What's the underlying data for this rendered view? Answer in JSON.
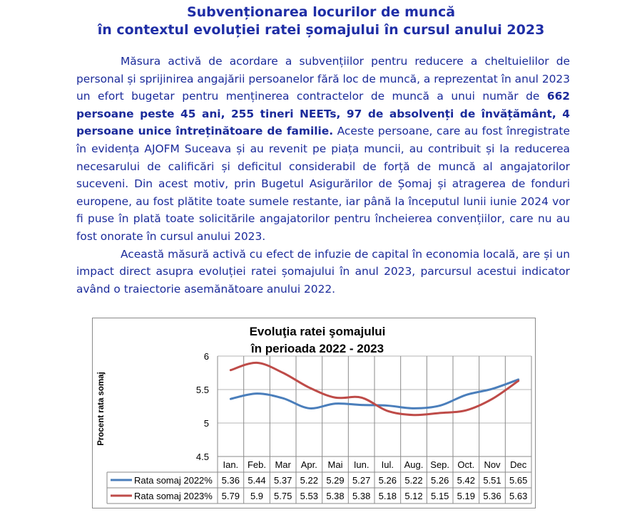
{
  "heading": {
    "line1": "Subvenționarea locurilor de muncă",
    "line2": "în contextul evoluției ratei șomajului în cursul anului 2023"
  },
  "paragraph1": {
    "part1": "Măsura activă de acordare a subvențiilor pentru reducere a cheltuielilor de personal și sprijinirea angajării persoanelor fără loc de muncă, a reprezentat în anul 2023 un efort bugetar pentru menținerea contractelor de muncă a unui număr de ",
    "bold": "662 persoane peste 45 ani, 255 tineri NEETs, 97 de absolvenți de învățământ, 4 persoane unice întreținătoare de familie.",
    "part2": " Aceste persoane, care au fost înregistrate în evidența AJOFM Suceava și au revenit pe piața muncii, au contribuit și la reducerea necesarului de calificări și deficitul considerabil de forță de muncă al angajatorilor suceveni. Din acest motiv, prin Bugetul Asigurărilor de Șomaj și atragerea de fonduri europene, au fost plătite toate sumele restante, iar până la începutul lunii iunie 2024 vor fi puse în plată toate solicitările angajatorilor pentru încheierea convențiilor, care nu au fost onorate în cursul anului 2023."
  },
  "paragraph2": "Această măsură activă cu efect de infuzie de capital în economia locală, are și un impact direct asupra evoluției ratei șomajului în anul 2023, parcursul acestui indicator având o traiectorie asemănătoare anului 2022.",
  "chart_data": {
    "type": "line",
    "title_line1": "Evoluţia ratei şomajului",
    "title_line2": "în perioada 2022  - 2023",
    "ylabel": "Procent rata somaj",
    "xlabel": "",
    "ylim": [
      4.5,
      6
    ],
    "yticks": [
      "4.5",
      "5",
      "5.5",
      "6"
    ],
    "ytick_values": [
      4.5,
      5,
      5.5,
      6
    ],
    "grid": true,
    "legend": "data-table-left",
    "categories": [
      "Ian.",
      "Feb.",
      "Mar",
      "Apr.",
      "Mai",
      "Iun.",
      "Iul.",
      "Aug.",
      "Sep.",
      "Oct.",
      "Nov",
      "Dec"
    ],
    "series": [
      {
        "name": "Rata somaj 2022%",
        "color": "#4a7ebb",
        "values": [
          5.36,
          5.44,
          5.37,
          5.22,
          5.29,
          5.27,
          5.26,
          5.22,
          5.26,
          5.42,
          5.51,
          5.65
        ],
        "labels": [
          "5.36",
          "5.44",
          "5.37",
          "5.22",
          "5.29",
          "5.27",
          "5.26",
          "5.22",
          "5.26",
          "5.42",
          "5.51",
          "5.65"
        ]
      },
      {
        "name": "Rata somaj 2023%",
        "color": "#be4b48",
        "values": [
          5.79,
          5.9,
          5.75,
          5.53,
          5.38,
          5.38,
          5.18,
          5.12,
          5.15,
          5.19,
          5.36,
          5.63
        ],
        "labels": [
          "5.79",
          "5.9",
          "5.75",
          "5.53",
          "5.38",
          "5.38",
          "5.18",
          "5.12",
          "5.15",
          "5.19",
          "5.36",
          "5.63"
        ]
      }
    ]
  }
}
